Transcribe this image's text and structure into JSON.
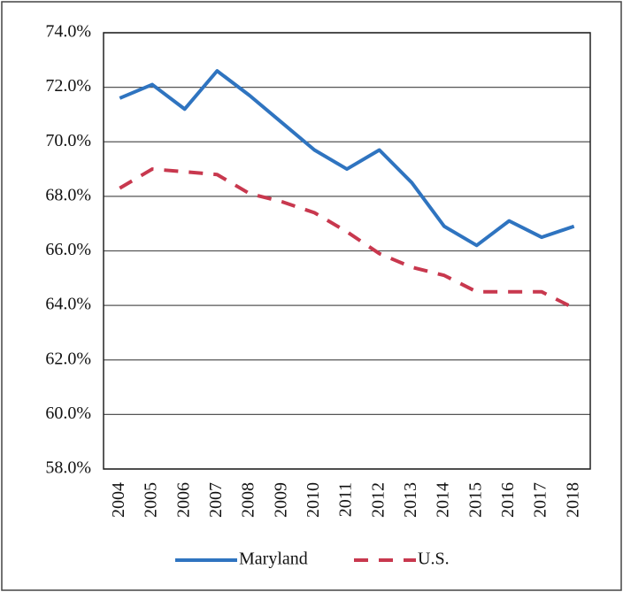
{
  "chart_data": {
    "type": "line",
    "categories": [
      "2004",
      "2005",
      "2006",
      "2007",
      "2008",
      "2009",
      "2010",
      "2011",
      "2012",
      "2013",
      "2014",
      "2015",
      "2016",
      "2017",
      "2018"
    ],
    "series": [
      {
        "name": "Maryland",
        "color": "#2f74c0",
        "style": "solid",
        "values": [
          71.6,
          72.1,
          71.2,
          72.6,
          71.7,
          70.7,
          69.7,
          69.0,
          69.7,
          68.5,
          66.9,
          66.2,
          67.1,
          66.5,
          66.9
        ]
      },
      {
        "name": "U.S.",
        "color": "#c8384e",
        "style": "dashed",
        "values": [
          68.3,
          69.0,
          68.9,
          68.8,
          68.1,
          67.8,
          67.4,
          66.7,
          65.9,
          65.4,
          65.1,
          64.5,
          64.5,
          64.5,
          63.9
        ]
      }
    ],
    "ylim": [
      58,
      74
    ],
    "yticks": [
      {
        "value": 58,
        "label": "58.0%"
      },
      {
        "value": 60,
        "label": "60.0%"
      },
      {
        "value": 62,
        "label": "62.0%"
      },
      {
        "value": 64,
        "label": "64.0%"
      },
      {
        "value": 66,
        "label": "66.0%"
      },
      {
        "value": 68,
        "label": "68.0%"
      },
      {
        "value": 70,
        "label": "70.0%"
      },
      {
        "value": 72,
        "label": "72.0%"
      },
      {
        "value": 74,
        "label": "74.0%"
      }
    ],
    "grid": true
  }
}
